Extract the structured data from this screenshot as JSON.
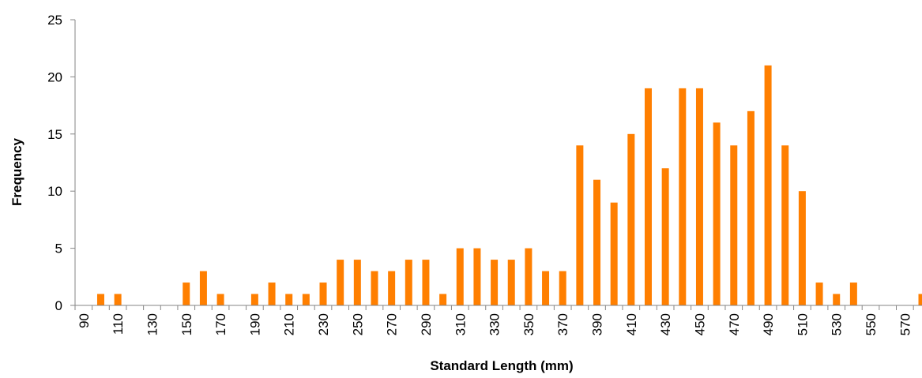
{
  "chart_data": {
    "type": "bar",
    "title": "",
    "xlabel": "Standard Length (mm)",
    "ylabel": "Frequency",
    "ylim": [
      0,
      25
    ],
    "y_ticks": [
      0,
      5,
      10,
      15,
      20,
      25
    ],
    "x_tick_labels": [
      "90",
      "110",
      "130",
      "150",
      "170",
      "190",
      "210",
      "230",
      "250",
      "270",
      "290",
      "310",
      "330",
      "350",
      "370",
      "390",
      "410",
      "430",
      "450",
      "470",
      "490",
      "510",
      "530",
      "550",
      "570"
    ],
    "grid": false,
    "legend": "none",
    "bar_color": "#FF7F00",
    "categories": [
      90,
      100,
      110,
      120,
      130,
      140,
      150,
      160,
      170,
      180,
      190,
      200,
      210,
      220,
      230,
      240,
      250,
      260,
      270,
      280,
      290,
      300,
      310,
      320,
      330,
      340,
      350,
      360,
      370,
      380,
      390,
      400,
      410,
      420,
      430,
      440,
      450,
      460,
      470,
      480,
      490,
      500,
      510,
      520,
      530,
      540,
      550,
      560,
      570,
      580
    ],
    "values": [
      0,
      1,
      1,
      0,
      0,
      0,
      2,
      3,
      1,
      0,
      1,
      2,
      1,
      1,
      2,
      4,
      4,
      3,
      3,
      4,
      4,
      1,
      5,
      5,
      4,
      4,
      5,
      3,
      3,
      14,
      11,
      9,
      15,
      19,
      12,
      19,
      19,
      16,
      14,
      17,
      21,
      14,
      10,
      2,
      1,
      2,
      0,
      0,
      0,
      1
    ]
  }
}
